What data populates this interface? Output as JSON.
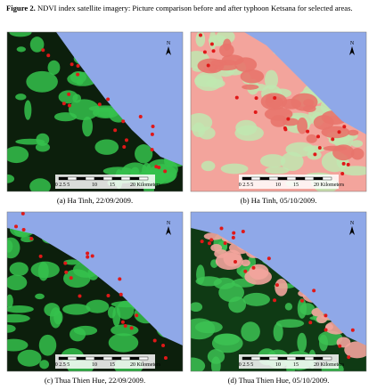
{
  "figure": {
    "label": "Figure 2.",
    "caption": "NDVI index satellite imagery: Picture comparison before and after typhoon Ketsana for selected areas."
  },
  "panels": [
    {
      "caption": "(a) Ha Tinh, 22/09/2009."
    },
    {
      "caption": "(b) Ha Tinh, 05/10/2009."
    },
    {
      "caption": "(c) Thua Thien Hue, 22/09/2009."
    },
    {
      "caption": "(d) Thua Thien Hue, 05/10/2009."
    }
  ],
  "map": {
    "north": "N",
    "scale_labels": [
      "0 2.5 5",
      "10",
      "15",
      "20 Kilometers"
    ]
  }
}
